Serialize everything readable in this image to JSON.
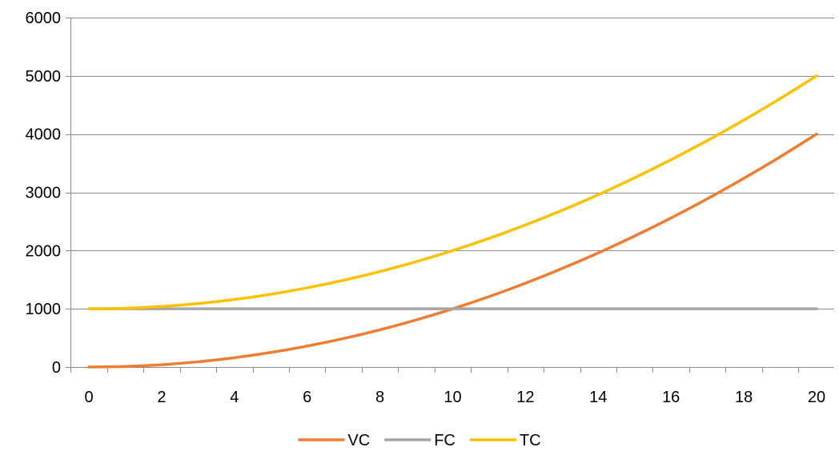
{
  "chart_data": {
    "type": "line",
    "title": "",
    "xlabel": "",
    "ylabel": "",
    "x": [
      0,
      1,
      2,
      3,
      4,
      5,
      6,
      7,
      8,
      9,
      10,
      11,
      12,
      13,
      14,
      15,
      16,
      17,
      18,
      19,
      20
    ],
    "x_ticks": [
      "0",
      "2",
      "4",
      "6",
      "8",
      "10",
      "12",
      "14",
      "16",
      "18",
      "20"
    ],
    "y_ticks": [
      "0",
      "1000",
      "2000",
      "3000",
      "4000",
      "5000",
      "6000"
    ],
    "xlim": [
      0,
      20
    ],
    "ylim": [
      0,
      6000
    ],
    "grid": "horizontal",
    "legend_position": "bottom",
    "series": [
      {
        "name": "VC",
        "color": "#ED7D31",
        "values": [
          0,
          10,
          40,
          90,
          160,
          250,
          360,
          490,
          640,
          810,
          1000,
          1210,
          1440,
          1690,
          1960,
          2250,
          2560,
          2890,
          3240,
          3610,
          4000
        ]
      },
      {
        "name": "FC",
        "color": "#A5A5A5",
        "values": [
          1000,
          1000,
          1000,
          1000,
          1000,
          1000,
          1000,
          1000,
          1000,
          1000,
          1000,
          1000,
          1000,
          1000,
          1000,
          1000,
          1000,
          1000,
          1000,
          1000,
          1000
        ]
      },
      {
        "name": "TC",
        "color": "#FFC000",
        "values": [
          1000,
          1010,
          1040,
          1090,
          1160,
          1250,
          1360,
          1490,
          1640,
          1810,
          2000,
          2210,
          2440,
          2690,
          2960,
          3250,
          3560,
          3890,
          4240,
          4610,
          5000
        ]
      }
    ]
  }
}
